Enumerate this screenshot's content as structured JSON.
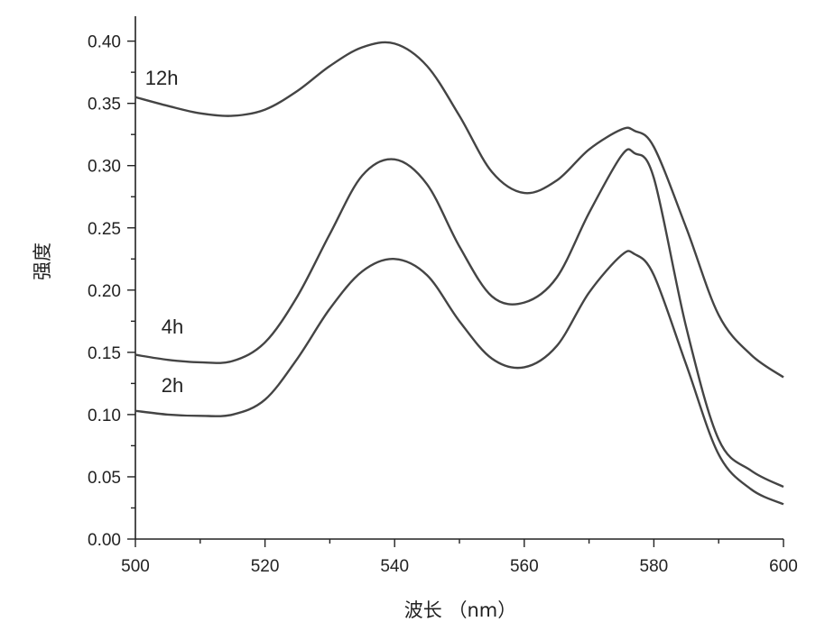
{
  "chart_data": {
    "type": "line",
    "xlabel": "波长 （nm）",
    "ylabel": "强度",
    "xlim": [
      500,
      600
    ],
    "ylim": [
      0,
      0.42
    ],
    "x_ticks": [
      500,
      520,
      540,
      560,
      580,
      600
    ],
    "x_tick_labels": [
      "500",
      "520",
      "540",
      "560",
      "580",
      "600"
    ],
    "y_ticks": [
      0,
      0.05,
      0.1,
      0.15,
      0.2,
      0.25,
      0.3,
      0.35,
      0.4
    ],
    "y_tick_labels": [
      "0.00",
      "0.05",
      "0.10",
      "0.15",
      "0.20",
      "0.25",
      "0.30",
      "0.35",
      "0.40"
    ],
    "x": [
      500,
      505,
      510,
      515,
      520,
      525,
      530,
      535,
      540,
      545,
      550,
      555,
      560,
      565,
      570,
      575,
      577,
      580,
      585,
      590,
      595,
      600
    ],
    "series": [
      {
        "name": "12h",
        "values": [
          0.355,
          0.348,
          0.342,
          0.34,
          0.345,
          0.36,
          0.38,
          0.395,
          0.398,
          0.38,
          0.34,
          0.295,
          0.278,
          0.288,
          0.313,
          0.329,
          0.328,
          0.315,
          0.25,
          0.18,
          0.148,
          0.13
        ]
      },
      {
        "name": "4h",
        "values": [
          0.148,
          0.144,
          0.142,
          0.143,
          0.158,
          0.195,
          0.245,
          0.292,
          0.305,
          0.285,
          0.235,
          0.195,
          0.19,
          0.21,
          0.262,
          0.308,
          0.31,
          0.29,
          0.17,
          0.08,
          0.055,
          0.042
        ]
      },
      {
        "name": "2h",
        "values": [
          0.103,
          0.1,
          0.099,
          0.1,
          0.112,
          0.145,
          0.185,
          0.215,
          0.225,
          0.212,
          0.175,
          0.145,
          0.138,
          0.155,
          0.198,
          0.228,
          0.229,
          0.212,
          0.14,
          0.068,
          0.04,
          0.028
        ]
      }
    ],
    "series_labels": {
      "12h": {
        "x": 501.5,
        "y": 0.365
      },
      "4h": {
        "x": 504,
        "y": 0.165
      },
      "2h": {
        "x": 504,
        "y": 0.118
      }
    },
    "grid": false,
    "legend": "none"
  }
}
